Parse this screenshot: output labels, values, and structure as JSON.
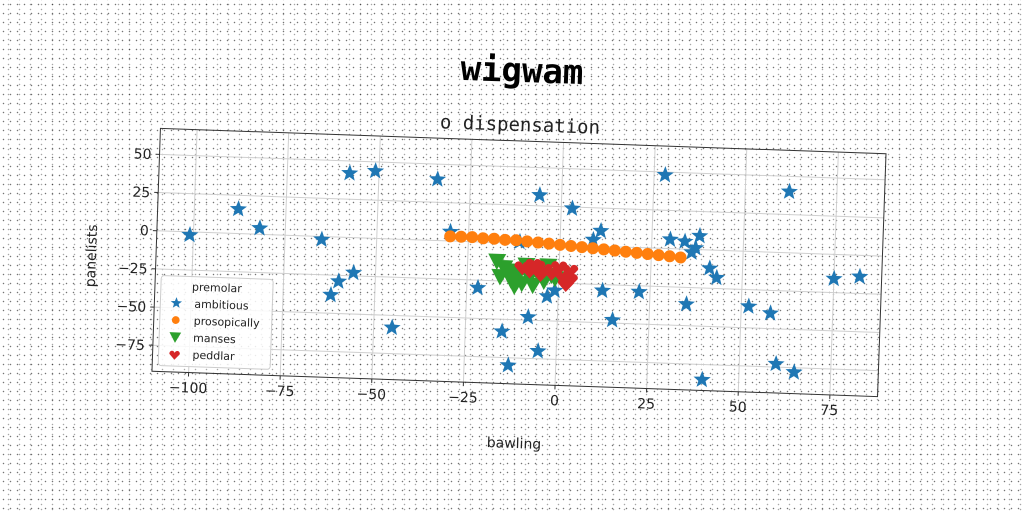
{
  "chart_data": {
    "type": "scatter",
    "title": "wigwam",
    "subtitle": "o dispensation",
    "xlabel": "bawling",
    "ylabel": "panelists",
    "xlim": [
      -110,
      88
    ],
    "ylim": [
      -92,
      67
    ],
    "xticks": [
      -100,
      -75,
      -50,
      -25,
      0,
      25,
      50,
      75
    ],
    "yticks": [
      -75,
      -50,
      -25,
      0,
      25,
      50
    ],
    "grid": true,
    "legend": {
      "title": "premolar",
      "position": "bottom-left"
    },
    "series": [
      {
        "name": "ambitious",
        "marker": "star",
        "color": "#1f77b4",
        "points": [
          [
            -101,
            -2
          ],
          [
            -88,
            16
          ],
          [
            -82,
            4
          ],
          [
            -65,
            -2
          ],
          [
            -60,
            -29
          ],
          [
            -62,
            -38
          ],
          [
            -56,
            -23
          ],
          [
            -58,
            42
          ],
          [
            -51,
            44
          ],
          [
            -45,
            -58
          ],
          [
            -34,
            40
          ],
          [
            -30,
            6
          ],
          [
            -22,
            -30
          ],
          [
            -15,
            -58
          ],
          [
            -13,
            -80
          ],
          [
            -11,
            1
          ],
          [
            -8,
            -48
          ],
          [
            -5,
            -70
          ],
          [
            -6,
            32
          ],
          [
            -3,
            -34
          ],
          [
            -1,
            -30
          ],
          [
            3,
            24
          ],
          [
            9,
            4
          ],
          [
            11,
            10
          ],
          [
            12,
            -29
          ],
          [
            15,
            -48
          ],
          [
            22,
            -29
          ],
          [
            28,
            48
          ],
          [
            30,
            6
          ],
          [
            34,
            5
          ],
          [
            35,
            -36
          ],
          [
            36,
            -2
          ],
          [
            37,
            1
          ],
          [
            38,
            9
          ],
          [
            40,
            -85
          ],
          [
            41,
            -12
          ],
          [
            43,
            -18
          ],
          [
            52,
            -36
          ],
          [
            58,
            -40
          ],
          [
            60,
            -73
          ],
          [
            65,
            -78
          ],
          [
            62,
            40
          ],
          [
            75,
            -16
          ],
          [
            82,
            -14
          ]
        ]
      },
      {
        "name": "prosopically",
        "marker": "circle",
        "color": "#ff7f0e",
        "points": [
          [
            -30,
            3
          ],
          [
            -27,
            3
          ],
          [
            -24,
            3
          ],
          [
            -21,
            2.5
          ],
          [
            -18,
            2.5
          ],
          [
            -15,
            2
          ],
          [
            -12,
            2
          ],
          [
            -9,
            1.5
          ],
          [
            -6,
            1
          ],
          [
            -3,
            0.5
          ],
          [
            0,
            0
          ],
          [
            3,
            -0.5
          ],
          [
            6,
            -1
          ],
          [
            9,
            -1.5
          ],
          [
            12,
            -2
          ],
          [
            15,
            -2.5
          ],
          [
            18,
            -3
          ],
          [
            21,
            -3.5
          ],
          [
            24,
            -4
          ],
          [
            27,
            -4.5
          ],
          [
            30,
            -5
          ],
          [
            33,
            -5.5
          ]
        ]
      },
      {
        "name": "manses",
        "marker": "triangle-down",
        "color": "#2ca02c",
        "points": [
          [
            -17,
            -12
          ],
          [
            -15,
            -16
          ],
          [
            -13,
            -18
          ],
          [
            -11,
            -20
          ],
          [
            -9,
            -14
          ],
          [
            -16,
            -22
          ],
          [
            -13,
            -24
          ],
          [
            -10,
            -26
          ],
          [
            -8,
            -22
          ],
          [
            -6,
            -18
          ],
          [
            -4,
            -24
          ],
          [
            -2,
            -20
          ],
          [
            -12,
            -28
          ],
          [
            -7,
            -27
          ],
          [
            -3,
            -14
          ],
          [
            -1,
            -22
          ]
        ]
      },
      {
        "name": "peddlar",
        "marker": "heart",
        "color": "#d62728",
        "points": [
          [
            -10,
            -15
          ],
          [
            -8,
            -17
          ],
          [
            -6,
            -14
          ],
          [
            -4,
            -16
          ],
          [
            -2,
            -18
          ],
          [
            0,
            -14
          ],
          [
            1,
            -20
          ],
          [
            3,
            -22
          ],
          [
            3,
            -16
          ],
          [
            -5,
            -19
          ],
          [
            -7,
            -13
          ],
          [
            2,
            -25
          ]
        ]
      }
    ]
  }
}
